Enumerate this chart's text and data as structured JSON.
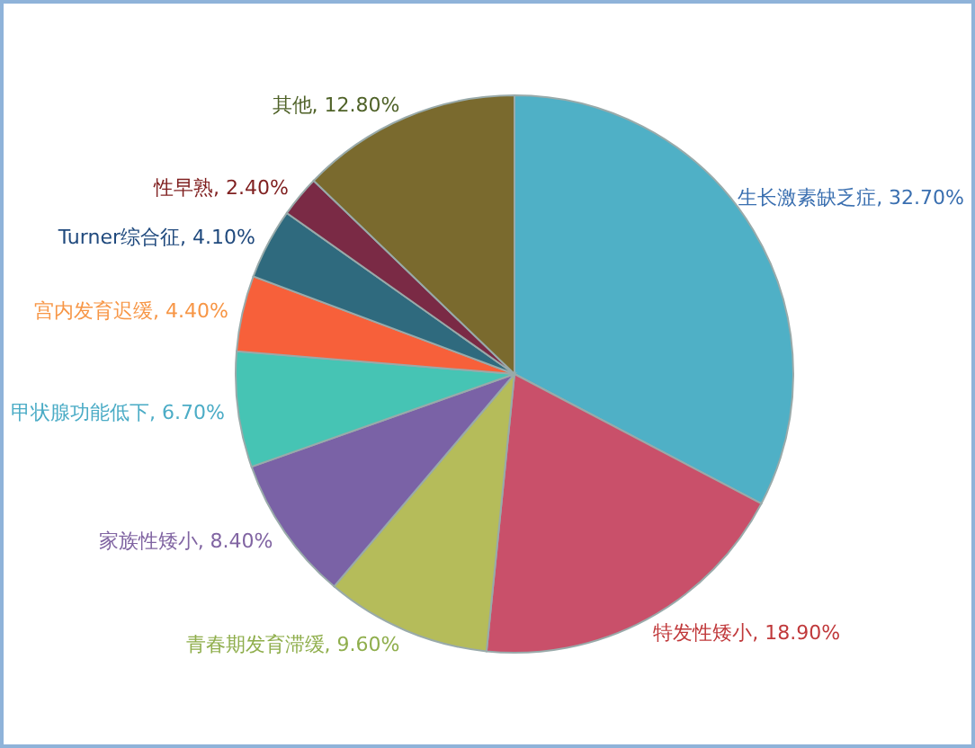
{
  "chart_data": {
    "type": "pie",
    "categories": [
      "生长激素缺乏症",
      "特发性矮小",
      "青春期发育滞缓",
      "家族性矮小",
      "甲状腺功能低下",
      "宫内发育迟缓",
      "Turner综合征",
      "性早熟",
      "其他"
    ],
    "values": [
      32.7,
      18.9,
      9.6,
      8.4,
      6.7,
      4.4,
      4.1,
      2.4,
      12.8
    ],
    "value_labels": [
      "32.70%",
      "18.90%",
      "9.60%",
      "8.40%",
      "6.70%",
      "4.40%",
      "4.10%",
      "2.40%",
      "12.80%"
    ],
    "colors": [
      "#4fb0c6",
      "#c9506a",
      "#b5bc5a",
      "#7a62a6",
      "#46c4b4",
      "#f7603a",
      "#2f6a7e",
      "#7a2a45",
      "#7a6a2e"
    ]
  }
}
